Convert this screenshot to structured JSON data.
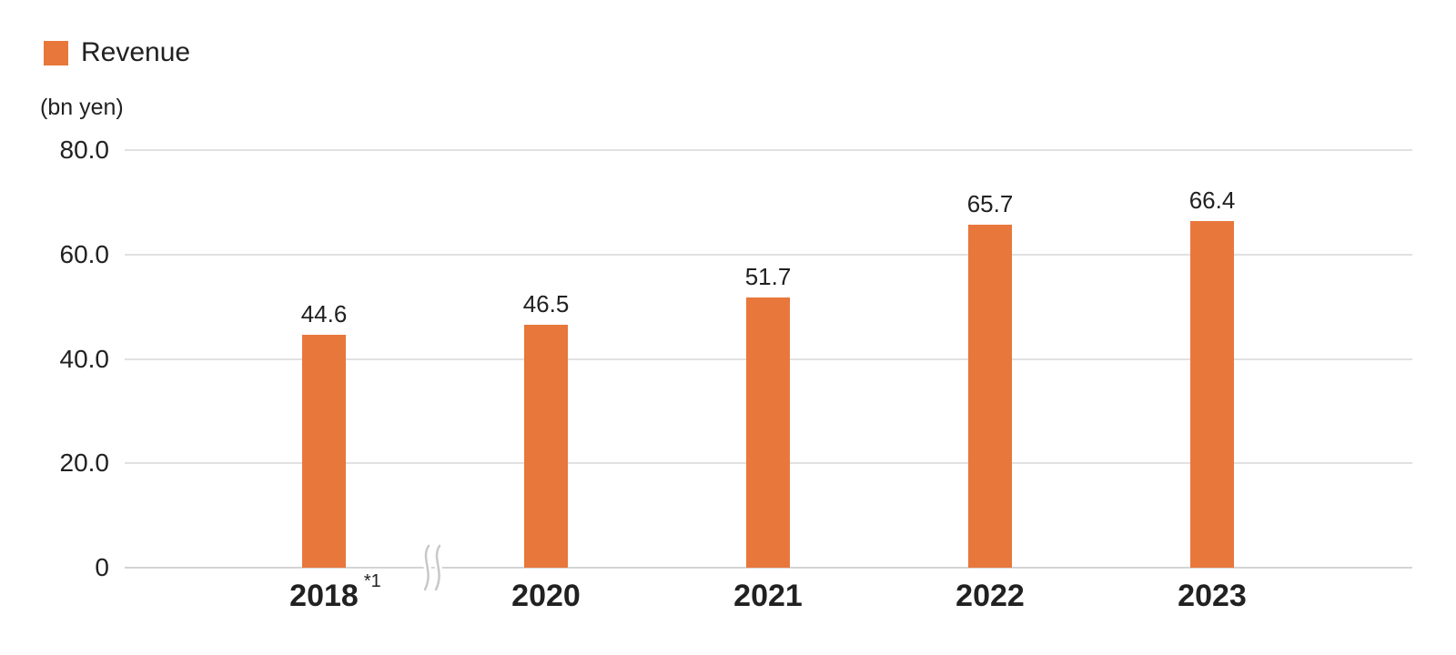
{
  "legend": {
    "label": "Revenue",
    "color": "#E8773B"
  },
  "axis_unit": "(bn yen)",
  "chart_data": {
    "type": "bar",
    "series_name": "Revenue",
    "categories": [
      "2018",
      "2020",
      "2021",
      "2022",
      "2023"
    ],
    "category_notes": [
      "*1",
      "",
      "",
      "",
      ""
    ],
    "values": [
      44.6,
      46.5,
      51.7,
      65.7,
      66.4
    ],
    "value_labels": [
      "44.6",
      "46.5",
      "51.7",
      "65.7",
      "66.4"
    ],
    "ylabel": "(bn yen)",
    "ylim": [
      0,
      80
    ],
    "yticks": [
      {
        "value": 80,
        "label": "80.0"
      },
      {
        "value": 60,
        "label": "60.0"
      },
      {
        "value": 40,
        "label": "40.0"
      },
      {
        "value": 20,
        "label": "20.0"
      },
      {
        "value": 0,
        "label": "0"
      }
    ],
    "grid": true,
    "legend_position": "top-left",
    "bar_color": "#E8773B",
    "axis_break": {
      "after_category": "2018",
      "style": "double-wave"
    }
  },
  "colors": {
    "text": "#212121",
    "gridline": "#E1E1E1",
    "zero_line": "#D4D4D4",
    "axis_break": "#C8C8C8",
    "background": "#FFFFFF"
  }
}
